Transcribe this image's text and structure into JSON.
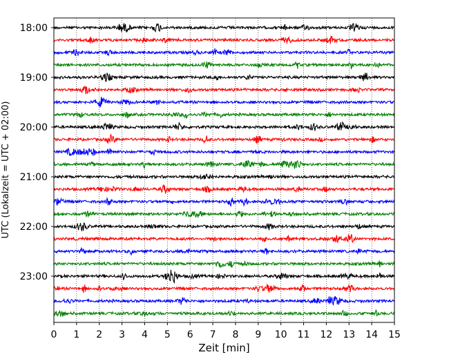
{
  "chart_data": {
    "type": "line",
    "title": "",
    "xlabel": "Zeit  [min]",
    "ylabel": "UTC (Lokalzeit = UTC + 02:00)",
    "xlim": [
      0,
      15
    ],
    "x_ticks": [
      "0",
      "1",
      "2",
      "3",
      "4",
      "5",
      "6",
      "7",
      "8",
      "9",
      "10",
      "11",
      "12",
      "13",
      "14",
      "15"
    ],
    "y_ticks": [
      "18:00",
      "19:00",
      "20:00",
      "21:00",
      "22:00",
      "23:00"
    ],
    "grid": "vertical dotted lines at each minute",
    "trace_interval_minutes": 15,
    "trace_colors": [
      "#000000",
      "#ff0000",
      "#0000ff",
      "#008000"
    ],
    "series": [
      {
        "start": "18:00",
        "color": "#000000"
      },
      {
        "start": "18:15",
        "color": "#ff0000"
      },
      {
        "start": "18:30",
        "color": "#0000ff"
      },
      {
        "start": "18:45",
        "color": "#008000"
      },
      {
        "start": "19:00",
        "color": "#000000"
      },
      {
        "start": "19:15",
        "color": "#ff0000"
      },
      {
        "start": "19:30",
        "color": "#0000ff"
      },
      {
        "start": "19:45",
        "color": "#008000"
      },
      {
        "start": "20:00",
        "color": "#000000"
      },
      {
        "start": "20:15",
        "color": "#ff0000"
      },
      {
        "start": "20:30",
        "color": "#0000ff"
      },
      {
        "start": "20:45",
        "color": "#008000"
      },
      {
        "start": "21:00",
        "color": "#000000"
      },
      {
        "start": "21:15",
        "color": "#ff0000"
      },
      {
        "start": "21:30",
        "color": "#0000ff"
      },
      {
        "start": "21:45",
        "color": "#008000"
      },
      {
        "start": "22:00",
        "color": "#000000"
      },
      {
        "start": "22:15",
        "color": "#ff0000"
      },
      {
        "start": "22:30",
        "color": "#0000ff"
      },
      {
        "start": "22:45",
        "color": "#008000"
      },
      {
        "start": "23:00",
        "color": "#000000"
      },
      {
        "start": "23:15",
        "color": "#ff0000"
      },
      {
        "start": "23:30",
        "color": "#0000ff"
      },
      {
        "start": "23:45",
        "color": "#008000"
      }
    ]
  }
}
